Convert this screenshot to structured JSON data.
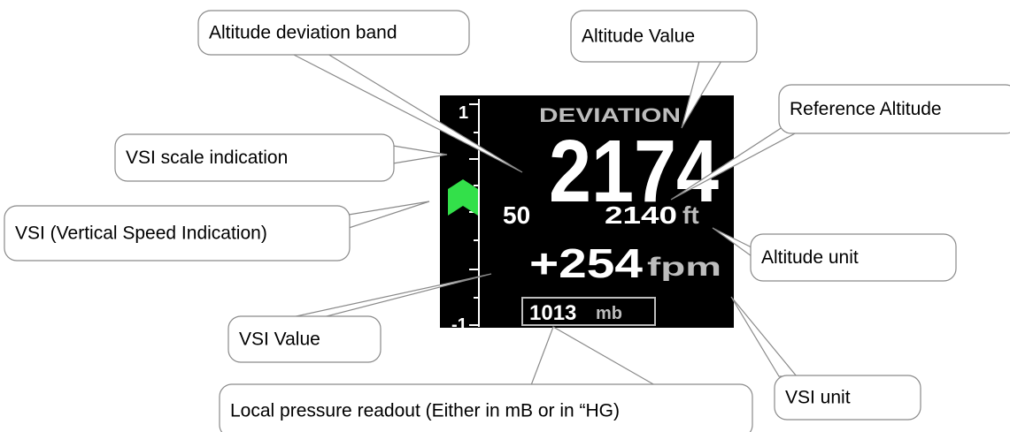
{
  "display": {
    "deviation_label": "DEVIATION",
    "altitude_value": "2174",
    "deviation_band": "50",
    "reference_altitude": "2140",
    "altitude_unit": "ft",
    "vsi_value": "+254",
    "vsi_unit": "fpm",
    "pressure_value": "1013",
    "pressure_unit": "mb",
    "scale_top": "1",
    "scale_bottom": "-1"
  },
  "callouts": [
    {
      "label": "Altitude deviation band"
    },
    {
      "label": "Altitude Value"
    },
    {
      "label": "Reference Altitude"
    },
    {
      "label": "VSI scale indication"
    },
    {
      "label": "VSI (Vertical Speed Indication)"
    },
    {
      "label": "Altitude unit"
    },
    {
      "label": "VSI Value"
    },
    {
      "label": "Local pressure readout (Either in mB or in “HG)"
    },
    {
      "label": "VSI unit"
    }
  ]
}
